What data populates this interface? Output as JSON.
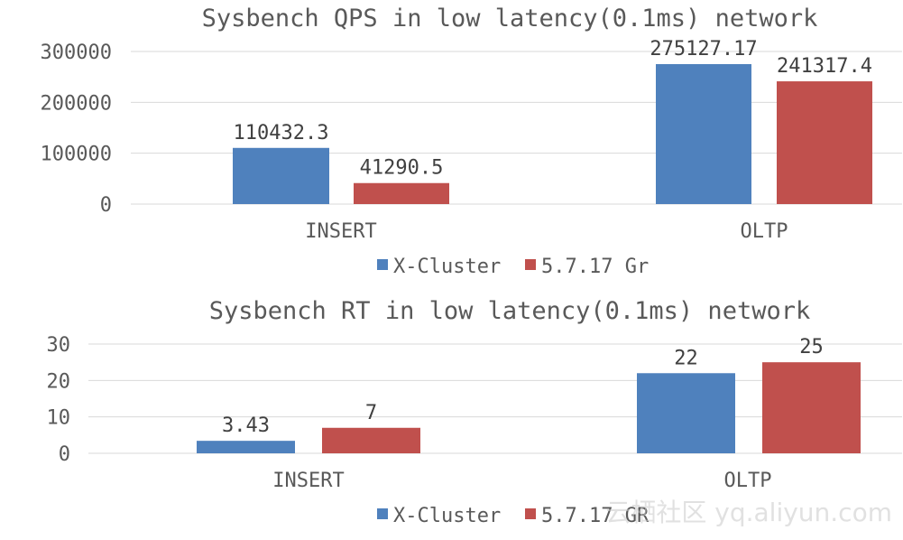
{
  "colors": {
    "x_cluster": "#4f81bd",
    "gr": "#c0504d"
  },
  "chart_data": [
    {
      "type": "bar",
      "title": "Sysbench QPS in low latency(0.1ms) network",
      "categories": [
        "INSERT",
        "OLTP"
      ],
      "series": [
        {
          "name": "X-Cluster",
          "values": [
            110432.3,
            275127.17
          ],
          "labels": [
            "110432.3",
            "275127.17"
          ]
        },
        {
          "name": "5.7.17 Gr",
          "values": [
            41290.5,
            241317.4
          ],
          "labels": [
            "41290.5",
            "241317.4"
          ]
        }
      ],
      "ylim": [
        0,
        300000
      ],
      "yticks": [
        "0",
        "100000",
        "200000",
        "300000"
      ],
      "grid": true,
      "legend": "bottom"
    },
    {
      "type": "bar",
      "title": "Sysbench RT in low latency(0.1ms) network",
      "categories": [
        "INSERT",
        "OLTP"
      ],
      "series": [
        {
          "name": "X-Cluster",
          "values": [
            3.43,
            22
          ],
          "labels": [
            "3.43",
            "22"
          ]
        },
        {
          "name": "5.7.17 GR",
          "values": [
            7,
            25
          ],
          "labels": [
            "7",
            "25"
          ]
        }
      ],
      "ylim": [
        0,
        30
      ],
      "yticks": [
        "0",
        "10",
        "20",
        "30"
      ],
      "grid": true,
      "legend": "bottom"
    }
  ],
  "watermark": "云栖社区 yq.aliyun.com"
}
